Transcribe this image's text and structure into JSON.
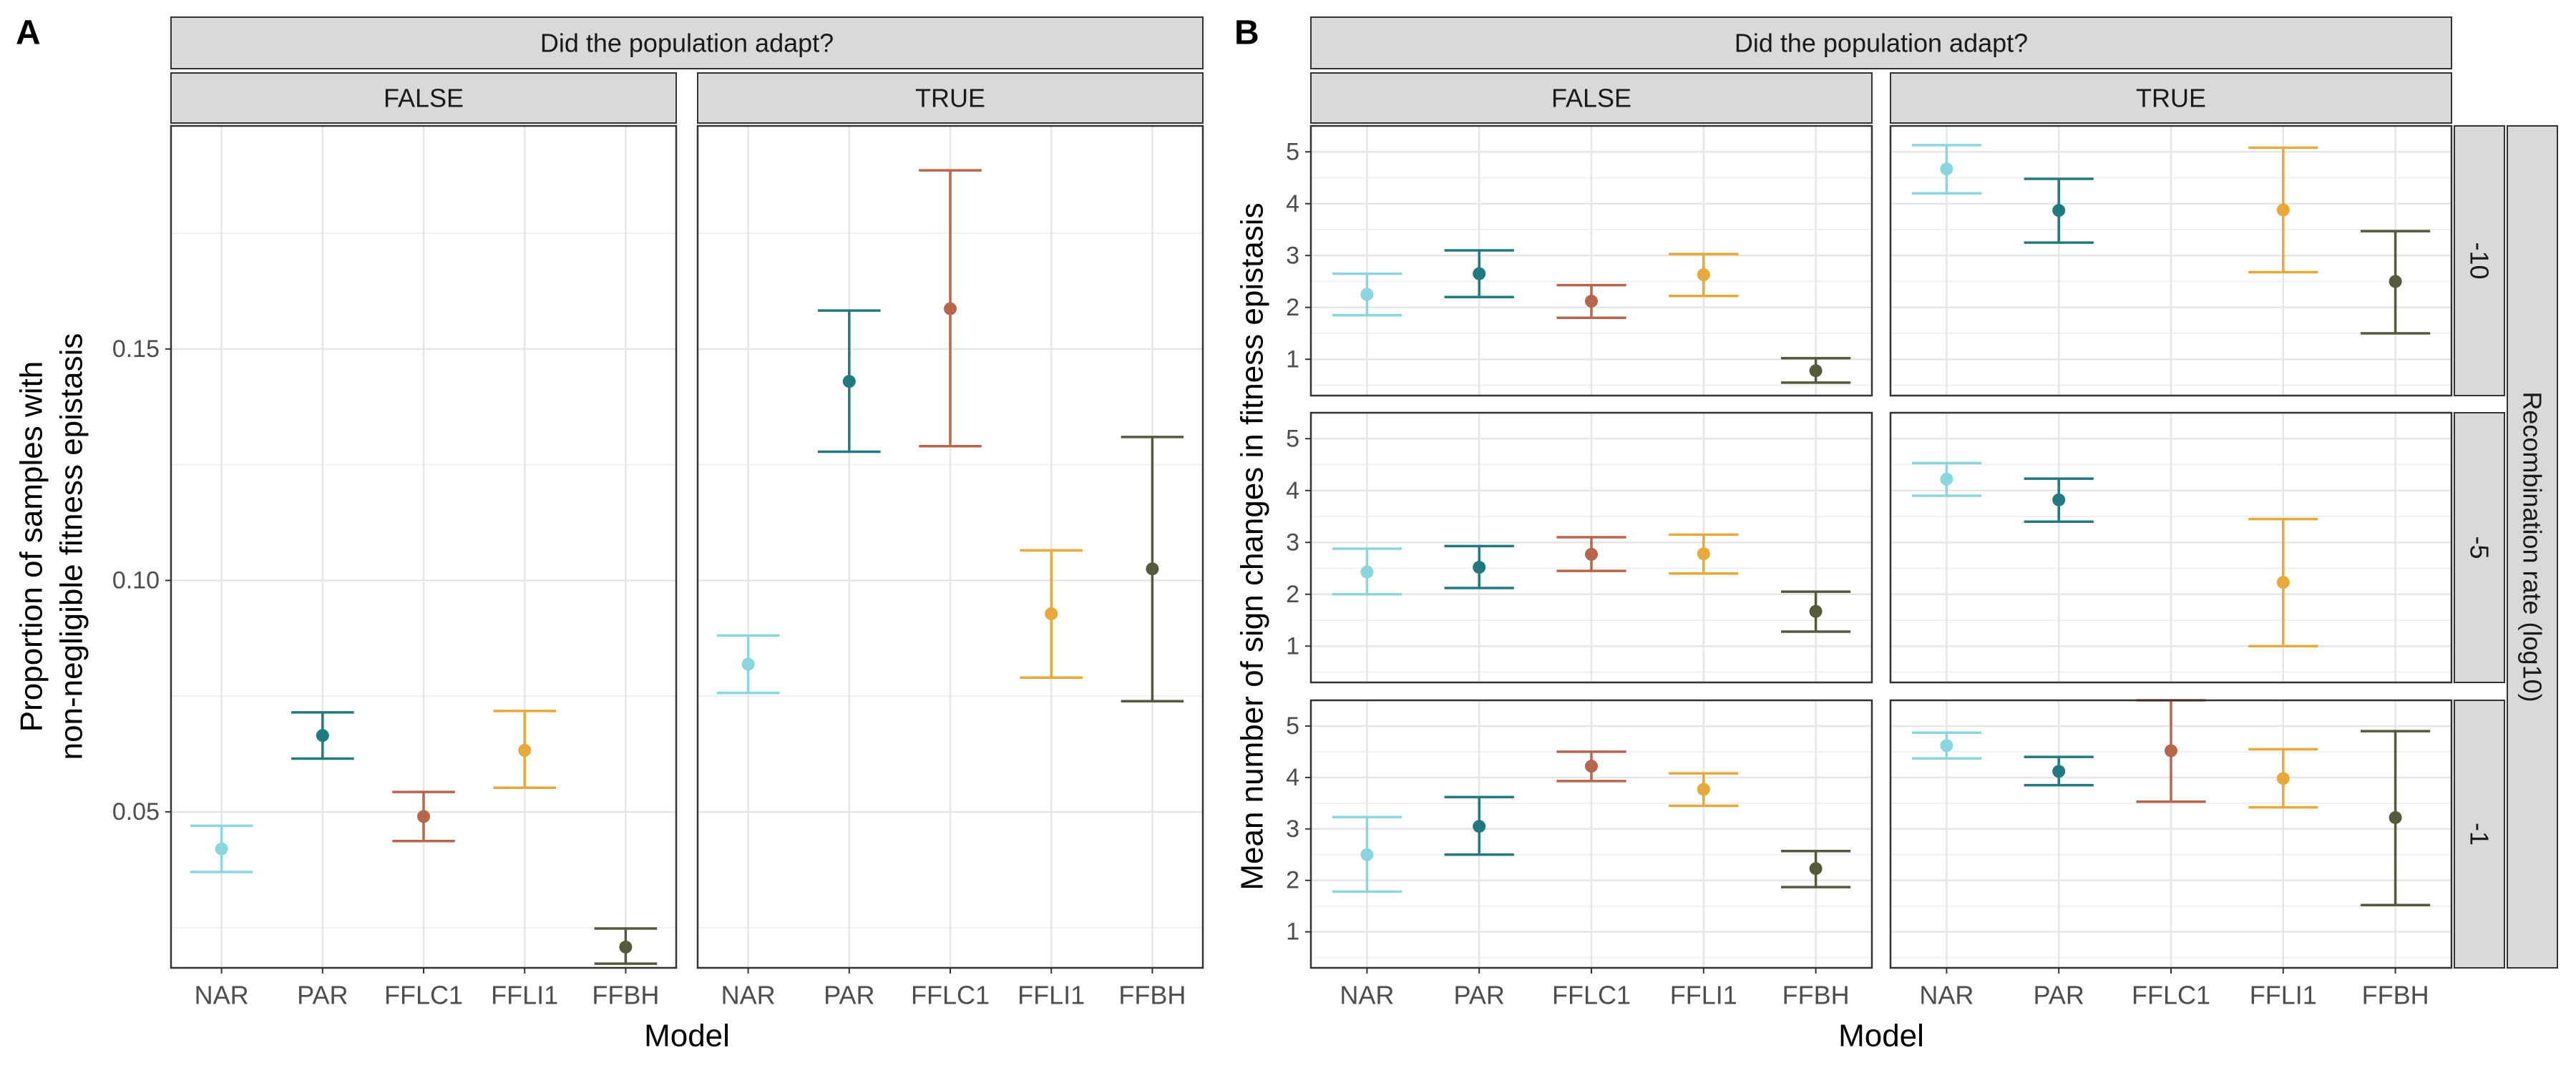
{
  "chart_data": [
    {
      "panel": "A",
      "type": "scatter",
      "facet_title": "Did the population adapt?",
      "facets": [
        "FALSE",
        "TRUE"
      ],
      "categories": [
        "NAR",
        "PAR",
        "FFLC1",
        "FFLI1",
        "FFBH"
      ],
      "xlabel": "Model",
      "ylabel": [
        "Proportion of samples with",
        "non-negligible fitness epistasis"
      ],
      "ylim": [
        0.0163,
        0.1982
      ],
      "yticks": [
        0.05,
        0.1,
        0.15
      ],
      "ytick_labels": [
        "0.05",
        "0.10",
        "0.15"
      ],
      "grid": true,
      "colors": [
        "#8ad6df",
        "#217a80",
        "#b8654b",
        "#e8a93a",
        "#555a3c"
      ],
      "data": {
        "FALSE": {
          "mean": [
            0.042,
            0.0665,
            0.049,
            0.0633,
            0.0208
          ],
          "lo": [
            0.037,
            0.0615,
            0.0437,
            0.0552,
            0.0172
          ],
          "hi": [
            0.047,
            0.0715,
            0.0543,
            0.0718,
            0.0248
          ]
        },
        "TRUE": {
          "mean": [
            0.0819,
            0.143,
            0.1587,
            0.0928,
            0.1025
          ],
          "lo": [
            0.0757,
            0.1278,
            0.129,
            0.079,
            0.0739
          ],
          "hi": [
            0.0881,
            0.1583,
            0.1886,
            0.1065,
            0.131
          ]
        }
      }
    },
    {
      "panel": "B",
      "type": "scatter",
      "facet_title": "Did the population adapt?",
      "facets": [
        "FALSE",
        "TRUE"
      ],
      "row_facet_title": "Recombination rate (log10)",
      "rows": [
        "-10",
        "-5",
        "-1"
      ],
      "categories": [
        "NAR",
        "PAR",
        "FFLC1",
        "FFLI1",
        "FFBH"
      ],
      "xlabel": "Model",
      "ylabel": "Mean number of sign changes in fitness epistasis",
      "ylim": [
        0.3,
        5.5
      ],
      "yticks": [
        1,
        2,
        3,
        4,
        5
      ],
      "ytick_labels": [
        "1",
        "2",
        "3",
        "4",
        "5"
      ],
      "grid": true,
      "colors": [
        "#8ad6df",
        "#217a80",
        "#b8654b",
        "#e8a93a",
        "#555a3c"
      ],
      "data": {
        "-10": {
          "FALSE": {
            "mean": [
              2.25,
              2.65,
              2.12,
              2.63,
              0.78
            ],
            "lo": [
              1.85,
              2.2,
              1.8,
              2.22,
              0.55
            ],
            "hi": [
              2.65,
              3.1,
              2.43,
              3.03,
              1.02
            ]
          },
          "TRUE": {
            "mean": [
              4.67,
              3.87,
              null,
              3.88,
              2.5
            ],
            "lo": [
              4.2,
              3.25,
              null,
              2.68,
              1.5
            ],
            "hi": [
              5.13,
              4.48,
              null,
              5.08,
              3.47
            ]
          }
        },
        "-5": {
          "FALSE": {
            "mean": [
              2.43,
              2.52,
              2.77,
              2.78,
              1.67
            ],
            "lo": [
              2.0,
              2.12,
              2.45,
              2.4,
              1.28
            ],
            "hi": [
              2.88,
              2.93,
              3.1,
              3.15,
              2.05
            ]
          },
          "TRUE": {
            "mean": [
              4.22,
              3.82,
              null,
              2.23,
              null
            ],
            "lo": [
              3.9,
              3.4,
              null,
              1.0,
              null
            ],
            "hi": [
              4.53,
              4.23,
              null,
              3.45,
              null
            ]
          }
        },
        "-1": {
          "FALSE": {
            "mean": [
              2.5,
              3.05,
              4.22,
              3.77,
              2.23
            ],
            "lo": [
              1.78,
              2.5,
              3.93,
              3.45,
              1.87
            ],
            "hi": [
              3.23,
              3.62,
              4.5,
              4.08,
              2.57
            ]
          },
          "TRUE": {
            "mean": [
              4.62,
              4.12,
              4.52,
              3.98,
              3.22
            ],
            "lo": [
              4.37,
              3.85,
              3.53,
              3.42,
              1.52
            ],
            "hi": [
              4.87,
              4.4,
              5.5,
              4.55,
              4.9
            ]
          }
        }
      }
    }
  ]
}
